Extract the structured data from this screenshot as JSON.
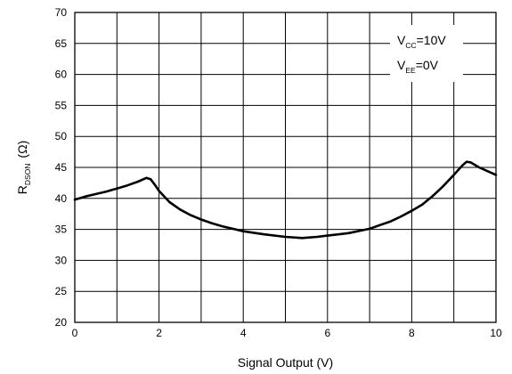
{
  "chart_data": {
    "type": "line",
    "xlabel": "Signal Output (V)",
    "ylabel": {
      "main": "R",
      "sub": "DSON",
      "unit": "(Ω)"
    },
    "xlim": [
      0,
      10
    ],
    "ylim": [
      20,
      70
    ],
    "x_ticks": [
      0,
      2,
      4,
      6,
      8,
      10
    ],
    "x_gridlines": [
      0,
      1,
      2,
      3,
      4,
      5,
      6,
      7,
      8,
      9,
      10
    ],
    "y_ticks": [
      20,
      25,
      30,
      35,
      40,
      45,
      50,
      55,
      60,
      65,
      70
    ],
    "grid": true,
    "annotations": [
      {
        "main": "V",
        "sub": "CC",
        "rest": "=10V"
      },
      {
        "main": "V",
        "sub": "EE",
        "rest": "=0V"
      }
    ],
    "annotation_placement": "top-right",
    "series": [
      {
        "color": "#000000",
        "points": [
          [
            0.0,
            39.8
          ],
          [
            0.25,
            40.3
          ],
          [
            0.5,
            40.7
          ],
          [
            0.75,
            41.1
          ],
          [
            1.0,
            41.6
          ],
          [
            1.25,
            42.1
          ],
          [
            1.5,
            42.7
          ],
          [
            1.7,
            43.3
          ],
          [
            1.8,
            43.1
          ],
          [
            1.9,
            42.2
          ],
          [
            2.0,
            41.2
          ],
          [
            2.25,
            39.4
          ],
          [
            2.5,
            38.2
          ],
          [
            2.75,
            37.3
          ],
          [
            3.0,
            36.6
          ],
          [
            3.25,
            36.0
          ],
          [
            3.5,
            35.5
          ],
          [
            3.75,
            35.1
          ],
          [
            4.0,
            34.7
          ],
          [
            4.5,
            34.2
          ],
          [
            5.0,
            33.8
          ],
          [
            5.4,
            33.6
          ],
          [
            5.75,
            33.8
          ],
          [
            6.0,
            34.0
          ],
          [
            6.5,
            34.4
          ],
          [
            7.0,
            35.1
          ],
          [
            7.25,
            35.7
          ],
          [
            7.5,
            36.3
          ],
          [
            7.75,
            37.1
          ],
          [
            8.0,
            38.0
          ],
          [
            8.25,
            39.0
          ],
          [
            8.5,
            40.4
          ],
          [
            8.75,
            42.0
          ],
          [
            9.0,
            43.8
          ],
          [
            9.2,
            45.3
          ],
          [
            9.3,
            45.9
          ],
          [
            9.4,
            45.8
          ],
          [
            9.6,
            45.0
          ],
          [
            9.8,
            44.4
          ],
          [
            10.0,
            43.8
          ]
        ]
      }
    ]
  }
}
